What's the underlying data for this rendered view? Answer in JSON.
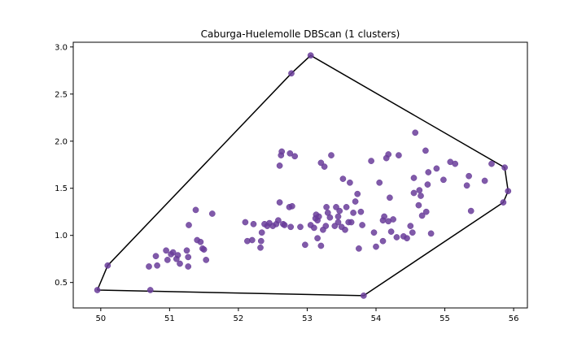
{
  "chart_data": {
    "type": "scatter",
    "title": "Caburga-Huelemolle DBScan (1 clusters)",
    "xlabel": "",
    "ylabel": "",
    "xlim": [
      49.6,
      56.2
    ],
    "ylim": [
      0.23,
      3.05
    ],
    "xticks": [
      "50",
      "51",
      "52",
      "53",
      "54",
      "55",
      "56"
    ],
    "yticks": [
      "0.5",
      "1.0",
      "1.5",
      "2.0",
      "2.5",
      "3.0"
    ],
    "grid": false,
    "legend": "none",
    "colors": {
      "points": "#6a3d9a",
      "hull": "#000000"
    },
    "series": [
      {
        "points": [
          [
            49.95,
            0.42
          ],
          [
            50.1,
            0.68
          ],
          [
            50.72,
            0.42
          ],
          [
            50.7,
            0.67
          ],
          [
            50.82,
            0.68
          ],
          [
            50.8,
            0.78
          ],
          [
            50.95,
            0.84
          ],
          [
            50.97,
            0.74
          ],
          [
            51.02,
            0.8
          ],
          [
            51.05,
            0.82
          ],
          [
            51.1,
            0.75
          ],
          [
            51.12,
            0.79
          ],
          [
            51.15,
            0.7
          ],
          [
            51.25,
            0.84
          ],
          [
            51.27,
            0.67
          ],
          [
            51.27,
            0.77
          ],
          [
            51.28,
            1.11
          ],
          [
            51.38,
            1.27
          ],
          [
            51.4,
            0.95
          ],
          [
            51.45,
            0.93
          ],
          [
            51.48,
            0.86
          ],
          [
            51.5,
            0.85
          ],
          [
            51.53,
            0.74
          ],
          [
            51.62,
            1.23
          ],
          [
            52.1,
            1.14
          ],
          [
            52.13,
            0.94
          ],
          [
            52.2,
            0.95
          ],
          [
            52.22,
            1.12
          ],
          [
            52.32,
            0.87
          ],
          [
            52.33,
            0.94
          ],
          [
            52.34,
            1.03
          ],
          [
            52.38,
            1.12
          ],
          [
            52.42,
            1.1
          ],
          [
            52.45,
            1.13
          ],
          [
            52.5,
            1.1
          ],
          [
            52.55,
            1.12
          ],
          [
            52.58,
            1.16
          ],
          [
            52.6,
            1.74
          ],
          [
            52.62,
            1.85
          ],
          [
            52.63,
            1.89
          ],
          [
            52.65,
            1.12
          ],
          [
            52.6,
            1.35
          ],
          [
            52.67,
            1.11
          ],
          [
            52.74,
            1.3
          ],
          [
            52.75,
            1.87
          ],
          [
            52.77,
            2.72
          ],
          [
            52.78,
            1.31
          ],
          [
            52.76,
            1.09
          ],
          [
            52.82,
            1.84
          ],
          [
            52.9,
            1.09
          ],
          [
            52.97,
            0.9
          ],
          [
            53.05,
            2.91
          ],
          [
            53.05,
            1.11
          ],
          [
            53.1,
            1.08
          ],
          [
            53.12,
            1.18
          ],
          [
            53.13,
            1.22
          ],
          [
            53.15,
            1.16
          ],
          [
            53.17,
            1.2
          ],
          [
            53.15,
            0.97
          ],
          [
            53.2,
            0.89
          ],
          [
            53.2,
            1.77
          ],
          [
            53.25,
            1.73
          ],
          [
            53.23,
            1.06
          ],
          [
            53.27,
            1.1
          ],
          [
            53.28,
            1.3
          ],
          [
            53.3,
            1.24
          ],
          [
            53.33,
            1.19
          ],
          [
            53.35,
            1.85
          ],
          [
            53.4,
            1.1
          ],
          [
            53.42,
            1.3
          ],
          [
            53.45,
            1.14
          ],
          [
            53.45,
            1.2
          ],
          [
            53.47,
            1.26
          ],
          [
            53.5,
            1.09
          ],
          [
            53.52,
            1.6
          ],
          [
            53.55,
            1.06
          ],
          [
            53.57,
            1.3
          ],
          [
            53.6,
            1.14
          ],
          [
            53.62,
            1.56
          ],
          [
            53.64,
            1.14
          ],
          [
            53.67,
            1.24
          ],
          [
            53.7,
            1.36
          ],
          [
            53.73,
            1.44
          ],
          [
            53.75,
            0.86
          ],
          [
            53.78,
            1.25
          ],
          [
            53.8,
            1.11
          ],
          [
            53.82,
            0.36
          ],
          [
            53.93,
            1.79
          ],
          [
            53.97,
            1.03
          ],
          [
            54.0,
            0.88
          ],
          [
            54.05,
            1.56
          ],
          [
            54.1,
            0.94
          ],
          [
            54.1,
            1.16
          ],
          [
            54.12,
            1.2
          ],
          [
            54.15,
            1.82
          ],
          [
            54.18,
            1.15
          ],
          [
            54.18,
            1.86
          ],
          [
            54.2,
            1.4
          ],
          [
            54.22,
            1.04
          ],
          [
            54.25,
            1.17
          ],
          [
            54.3,
            0.98
          ],
          [
            54.33,
            1.85
          ],
          [
            54.4,
            0.99
          ],
          [
            54.45,
            0.97
          ],
          [
            54.5,
            1.1
          ],
          [
            54.53,
            1.03
          ],
          [
            54.55,
            1.45
          ],
          [
            54.55,
            1.61
          ],
          [
            54.57,
            2.09
          ],
          [
            54.62,
            1.32
          ],
          [
            54.63,
            1.48
          ],
          [
            54.65,
            1.42
          ],
          [
            54.67,
            1.21
          ],
          [
            54.72,
            1.9
          ],
          [
            54.73,
            1.25
          ],
          [
            54.75,
            1.54
          ],
          [
            54.76,
            1.67
          ],
          [
            54.8,
            1.02
          ],
          [
            54.88,
            1.71
          ],
          [
            54.98,
            1.59
          ],
          [
            55.08,
            1.78
          ],
          [
            55.15,
            1.76
          ],
          [
            55.32,
            1.53
          ],
          [
            55.35,
            1.63
          ],
          [
            55.38,
            1.26
          ],
          [
            55.58,
            1.58
          ],
          [
            55.68,
            1.76
          ],
          [
            55.85,
            1.35
          ],
          [
            55.87,
            1.72
          ],
          [
            55.92,
            1.47
          ]
        ]
      }
    ],
    "hull": [
      [
        49.95,
        0.42
      ],
      [
        53.82,
        0.36
      ],
      [
        55.85,
        1.35
      ],
      [
        55.92,
        1.47
      ],
      [
        55.87,
        1.72
      ],
      [
        53.05,
        2.91
      ],
      [
        52.77,
        2.72
      ],
      [
        50.1,
        0.68
      ],
      [
        49.95,
        0.42
      ]
    ]
  }
}
